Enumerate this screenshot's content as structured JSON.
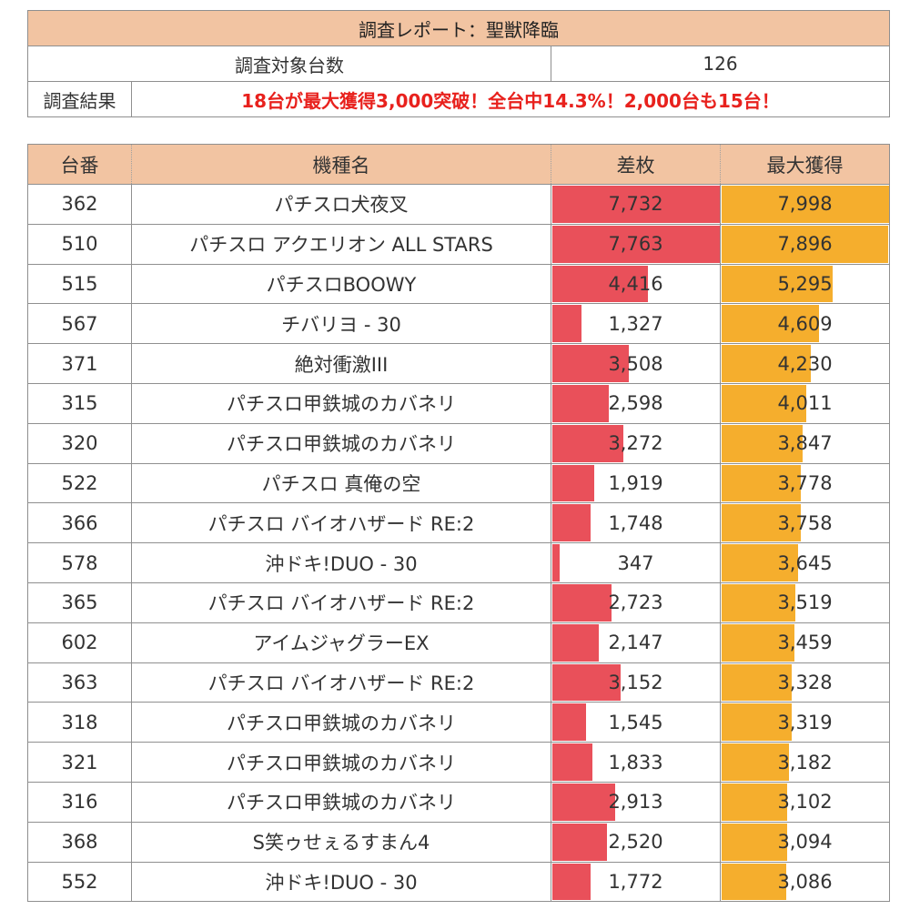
{
  "report": {
    "title": "調査レポート：聖獣降臨",
    "target_label": "調査対象台数",
    "target_value": "126",
    "result_label": "調査結果",
    "result_text": "18台が最大獲得3,000突破！全台中14.3%！2,000台も15台！"
  },
  "colors": {
    "header_bg": "#f2c4a2",
    "diff_bar": "#e9505a",
    "max_bar": "#f5ae2d",
    "highlight_text": "#e8211d"
  },
  "table": {
    "headers": [
      "台番",
      "機種名",
      "差枚",
      "最大獲得"
    ],
    "diff_scale_max": 7763,
    "max_scale_max": 7998,
    "rows": [
      {
        "no": "362",
        "name": "パチスロ犬夜叉",
        "diff": 7732,
        "max": 7998
      },
      {
        "no": "510",
        "name": "パチスロ アクエリオン ALL STARS",
        "diff": 7763,
        "max": 7896
      },
      {
        "no": "515",
        "name": "パチスロBOOWY",
        "diff": 4416,
        "max": 5295
      },
      {
        "no": "567",
        "name": "チバリヨ - 30",
        "diff": 1327,
        "max": 4609
      },
      {
        "no": "371",
        "name": "絶対衝激III",
        "diff": 3508,
        "max": 4230
      },
      {
        "no": "315",
        "name": "パチスロ甲鉄城のカバネリ",
        "diff": 2598,
        "max": 4011
      },
      {
        "no": "320",
        "name": "パチスロ甲鉄城のカバネリ",
        "diff": 3272,
        "max": 3847
      },
      {
        "no": "522",
        "name": "パチスロ 真俺の空",
        "diff": 1919,
        "max": 3778
      },
      {
        "no": "366",
        "name": "パチスロ バイオハザード RE:2",
        "diff": 1748,
        "max": 3758
      },
      {
        "no": "578",
        "name": "沖ドキ!DUO - 30",
        "diff": 347,
        "max": 3645
      },
      {
        "no": "365",
        "name": "パチスロ バイオハザード RE:2",
        "diff": 2723,
        "max": 3519
      },
      {
        "no": "602",
        "name": "アイムジャグラーEX",
        "diff": 2147,
        "max": 3459
      },
      {
        "no": "363",
        "name": "パチスロ バイオハザード RE:2",
        "diff": 3152,
        "max": 3328
      },
      {
        "no": "318",
        "name": "パチスロ甲鉄城のカバネリ",
        "diff": 1545,
        "max": 3319
      },
      {
        "no": "321",
        "name": "パチスロ甲鉄城のカバネリ",
        "diff": 1833,
        "max": 3182
      },
      {
        "no": "316",
        "name": "パチスロ甲鉄城のカバネリ",
        "diff": 2913,
        "max": 3102
      },
      {
        "no": "368",
        "name": "S笑ゥせぇるすまん4",
        "diff": 2520,
        "max": 3094
      },
      {
        "no": "552",
        "name": "沖ドキ!DUO - 30",
        "diff": 1772,
        "max": 3086
      }
    ]
  }
}
